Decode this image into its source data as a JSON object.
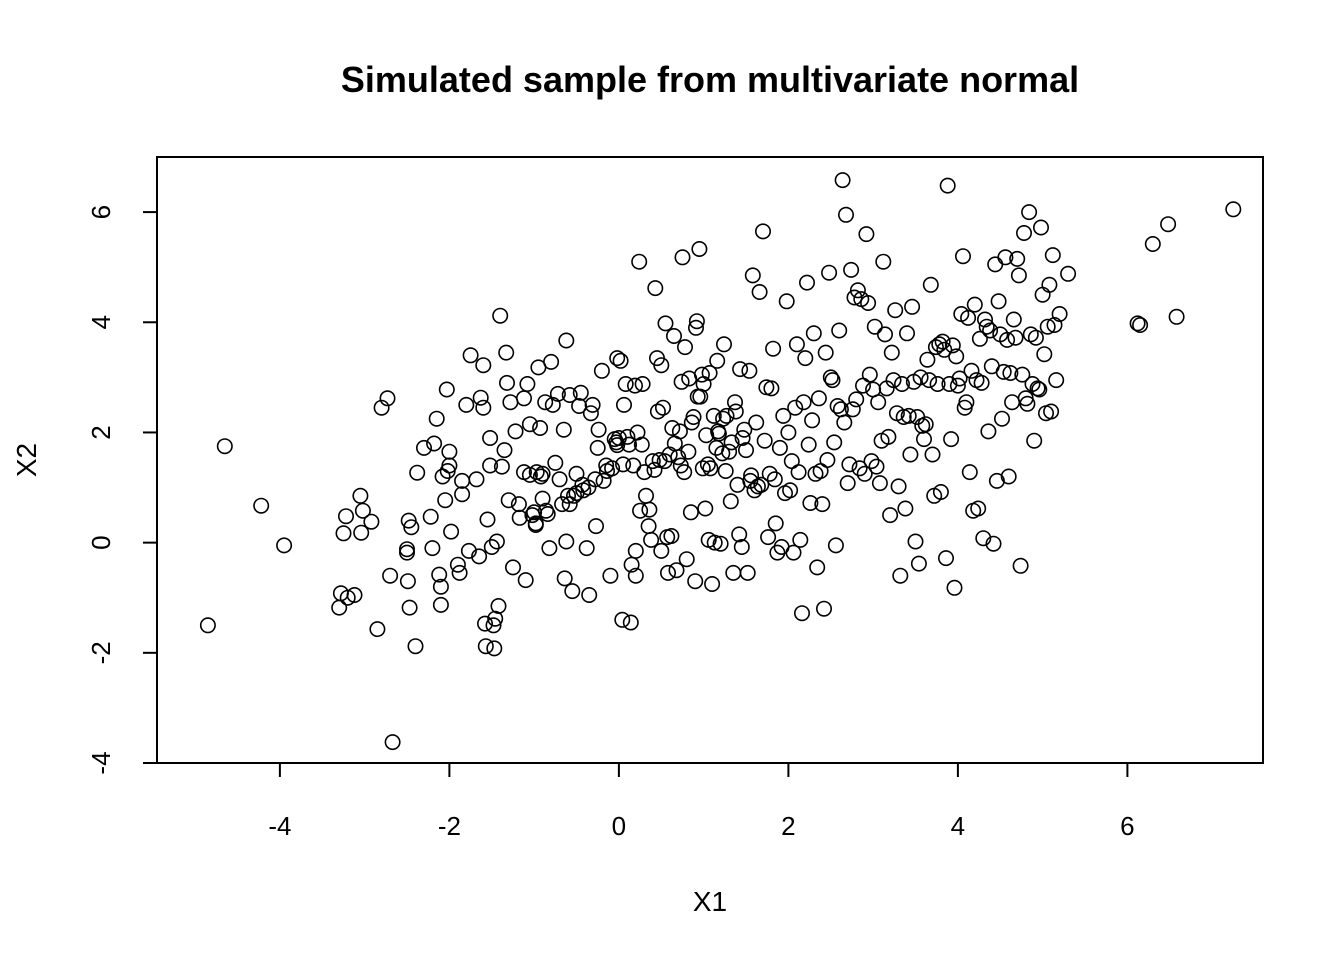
{
  "chart_data": {
    "type": "scatter",
    "title": "Simulated sample from multivariate normal",
    "xlabel": "X1",
    "ylabel": "X2",
    "xlim": [
      -5.45,
      7.6
    ],
    "ylim": [
      -4,
      7
    ],
    "xticks": [
      -4,
      -2,
      0,
      2,
      4,
      6
    ],
    "yticks": [
      -4,
      -2,
      0,
      2,
      4,
      6
    ],
    "xtick_labels": [
      "-4",
      "-2",
      "0",
      "2",
      "4",
      "6"
    ],
    "ytick_labels": [
      "-4",
      "-2",
      "0",
      "2",
      "4",
      "6"
    ],
    "grid": false,
    "legend": "none",
    "marker": "open-circle",
    "color": "#000000",
    "points": [
      [
        -4.85,
        -1.5
      ],
      [
        -4.65,
        1.75
      ],
      [
        -4.22,
        0.67
      ],
      [
        -3.95,
        -0.05
      ],
      [
        -3.3,
        -1.18
      ],
      [
        -3.28,
        -0.92
      ],
      [
        -3.22,
        0.48
      ],
      [
        -3.25,
        0.17
      ],
      [
        -3.2,
        -1.0
      ],
      [
        -3.12,
        -0.95
      ],
      [
        -3.05,
        0.85
      ],
      [
        -3.04,
        0.18
      ],
      [
        -3.02,
        0.58
      ],
      [
        -2.92,
        0.38
      ],
      [
        -2.85,
        -1.57
      ],
      [
        -2.8,
        2.45
      ],
      [
        -2.73,
        2.62
      ],
      [
        -2.7,
        -0.6
      ],
      [
        -2.67,
        -3.62
      ],
      [
        -2.5,
        -0.12
      ],
      [
        -2.5,
        -0.18
      ],
      [
        -2.49,
        -0.7
      ],
      [
        -2.48,
        0.4
      ],
      [
        -2.47,
        -1.18
      ],
      [
        -2.45,
        0.28
      ],
      [
        -2.4,
        -1.88
      ],
      [
        -2.38,
        1.27
      ],
      [
        -2.3,
        1.72
      ],
      [
        -2.22,
        0.47
      ],
      [
        -2.2,
        -0.1
      ],
      [
        -2.18,
        1.8
      ],
      [
        -2.15,
        2.25
      ],
      [
        -2.12,
        -0.58
      ],
      [
        -2.1,
        -0.8
      ],
      [
        -2.1,
        -1.13
      ],
      [
        -2.08,
        1.2
      ],
      [
        -2.05,
        0.77
      ],
      [
        -2.03,
        2.78
      ],
      [
        -2.02,
        1.3
      ],
      [
        -2.0,
        1.4
      ],
      [
        -2.0,
        1.65
      ],
      [
        -1.98,
        0.2
      ],
      [
        -1.9,
        -0.4
      ],
      [
        -1.88,
        -0.55
      ],
      [
        -1.85,
        1.12
      ],
      [
        -1.85,
        0.88
      ],
      [
        -1.8,
        2.5
      ],
      [
        -1.77,
        -0.15
      ],
      [
        -1.75,
        3.4
      ],
      [
        -1.68,
        1.15
      ],
      [
        -1.65,
        -0.25
      ],
      [
        -1.63,
        2.63
      ],
      [
        -1.6,
        2.45
      ],
      [
        -1.6,
        3.22
      ],
      [
        -1.58,
        -1.47
      ],
      [
        -1.57,
        -1.88
      ],
      [
        -1.55,
        0.42
      ],
      [
        -1.52,
        1.9
      ],
      [
        -1.52,
        1.4
      ],
      [
        -1.5,
        -0.08
      ],
      [
        -1.48,
        -1.5
      ],
      [
        -1.47,
        -1.92
      ],
      [
        -1.46,
        -1.38
      ],
      [
        -1.44,
        0.02
      ],
      [
        -1.42,
        -1.15
      ],
      [
        -1.4,
        4.12
      ],
      [
        -1.38,
        1.38
      ],
      [
        -1.35,
        1.68
      ],
      [
        -1.33,
        3.45
      ],
      [
        -1.32,
        2.9
      ],
      [
        -1.3,
        0.77
      ],
      [
        -1.28,
        2.55
      ],
      [
        -1.25,
        -0.45
      ],
      [
        -1.22,
        2.02
      ],
      [
        -1.18,
        0.7
      ],
      [
        -1.17,
        0.45
      ],
      [
        -1.12,
        1.28
      ],
      [
        -1.12,
        2.62
      ],
      [
        -1.1,
        -0.68
      ],
      [
        -1.08,
        2.88
      ],
      [
        -1.05,
        2.15
      ],
      [
        -1.05,
        1.23
      ],
      [
        -1.02,
        0.5
      ],
      [
        -1.0,
        0.55
      ],
      [
        -0.98,
        0.35
      ],
      [
        -0.98,
        0.32
      ],
      [
        -0.97,
        1.28
      ],
      [
        -0.95,
        3.18
      ],
      [
        -0.93,
        2.08
      ],
      [
        -0.92,
        1.2
      ],
      [
        -0.9,
        0.8
      ],
      [
        -0.9,
        1.25
      ],
      [
        -0.87,
        2.55
      ],
      [
        -0.86,
        0.58
      ],
      [
        -0.84,
        0.52
      ],
      [
        -0.82,
        -0.1
      ],
      [
        -0.8,
        3.28
      ],
      [
        -0.78,
        2.5
      ],
      [
        -0.75,
        1.45
      ],
      [
        -0.72,
        2.7
      ],
      [
        -0.7,
        1.15
      ],
      [
        -0.67,
        0.7
      ],
      [
        -0.65,
        2.05
      ],
      [
        -0.64,
        -0.65
      ],
      [
        -0.62,
        0.02
      ],
      [
        -0.62,
        3.67
      ],
      [
        -0.6,
        0.85
      ],
      [
        -0.58,
        2.68
      ],
      [
        -0.58,
        0.7
      ],
      [
        -0.55,
        -0.88
      ],
      [
        -0.53,
        0.85
      ],
      [
        -0.5,
        1.25
      ],
      [
        -0.5,
        0.9
      ],
      [
        -0.47,
        2.48
      ],
      [
        -0.45,
        2.72
      ],
      [
        -0.43,
        1.05
      ],
      [
        -0.42,
        0.95
      ],
      [
        -0.38,
        -0.1
      ],
      [
        -0.36,
        1.0
      ],
      [
        -0.35,
        -0.95
      ],
      [
        -0.33,
        2.35
      ],
      [
        -0.31,
        2.5
      ],
      [
        -0.28,
        1.15
      ],
      [
        -0.27,
        0.3
      ],
      [
        -0.25,
        1.72
      ],
      [
        -0.24,
        2.05
      ],
      [
        -0.2,
        3.12
      ],
      [
        -0.18,
        1.12
      ],
      [
        -0.15,
        1.4
      ],
      [
        -0.14,
        1.3
      ],
      [
        -0.1,
        -0.6
      ],
      [
        -0.08,
        1.35
      ],
      [
        -0.05,
        1.88
      ],
      [
        -0.02,
        1.77
      ],
      [
        0.0,
        1.9
      ],
      [
        0.02,
        3.3
      ],
      [
        0.04,
        -1.4
      ],
      [
        -0.02,
        3.35
      ],
      [
        -0.03,
        1.82
      ],
      [
        0.05,
        1.42
      ],
      [
        0.06,
        2.5
      ],
      [
        0.08,
        2.88
      ],
      [
        0.1,
        1.92
      ],
      [
        0.12,
        1.78
      ],
      [
        0.14,
        -1.45
      ],
      [
        0.15,
        -0.4
      ],
      [
        0.17,
        1.4
      ],
      [
        0.19,
        2.85
      ],
      [
        0.2,
        -0.6
      ],
      [
        0.2,
        -0.15
      ],
      [
        0.22,
        2.0
      ],
      [
        0.24,
        5.1
      ],
      [
        0.25,
        0.58
      ],
      [
        0.27,
        1.78
      ],
      [
        0.28,
        2.88
      ],
      [
        0.3,
        1.28
      ],
      [
        0.32,
        0.85
      ],
      [
        0.35,
        0.3
      ],
      [
        0.36,
        0.6
      ],
      [
        0.38,
        0.05
      ],
      [
        0.4,
        1.48
      ],
      [
        0.42,
        1.32
      ],
      [
        0.43,
        4.62
      ],
      [
        0.45,
        3.35
      ],
      [
        0.46,
        2.38
      ],
      [
        0.48,
        1.5
      ],
      [
        0.5,
        3.22
      ],
      [
        0.5,
        -0.15
      ],
      [
        0.52,
        2.45
      ],
      [
        0.54,
        1.48
      ],
      [
        0.55,
        3.98
      ],
      [
        0.57,
        0.1
      ],
      [
        0.58,
        -0.55
      ],
      [
        0.6,
        1.6
      ],
      [
        0.62,
        0.12
      ],
      [
        0.63,
        2.08
      ],
      [
        0.65,
        3.75
      ],
      [
        0.66,
        1.8
      ],
      [
        0.68,
        -0.5
      ],
      [
        0.7,
        1.55
      ],
      [
        0.72,
        2.02
      ],
      [
        0.73,
        1.4
      ],
      [
        0.74,
        2.92
      ],
      [
        0.75,
        5.18
      ],
      [
        0.77,
        1.28
      ],
      [
        0.78,
        3.55
      ],
      [
        0.8,
        -0.3
      ],
      [
        0.82,
        1.65
      ],
      [
        0.83,
        2.98
      ],
      [
        0.85,
        0.55
      ],
      [
        0.86,
        2.18
      ],
      [
        0.88,
        2.28
      ],
      [
        0.9,
        -0.7
      ],
      [
        0.91,
        3.9
      ],
      [
        0.92,
        4.02
      ],
      [
        0.93,
        2.65
      ],
      [
        0.95,
        5.33
      ],
      [
        0.96,
        2.65
      ],
      [
        0.98,
        3.05
      ],
      [
        0.99,
        1.35
      ],
      [
        1.0,
        2.88
      ],
      [
        1.02,
        0.62
      ],
      [
        1.03,
        1.95
      ],
      [
        1.05,
        1.42
      ],
      [
        1.06,
        0.05
      ],
      [
        1.07,
        3.08
      ],
      [
        1.08,
        1.35
      ],
      [
        1.1,
        -0.75
      ],
      [
        1.12,
        2.3
      ],
      [
        1.13,
        0.0
      ],
      [
        1.15,
        1.72
      ],
      [
        1.16,
        3.3
      ],
      [
        1.17,
        2.02
      ],
      [
        1.18,
        1.98
      ],
      [
        1.2,
        -0.02
      ],
      [
        1.22,
        1.62
      ],
      [
        1.23,
        2.25
      ],
      [
        1.24,
        3.6
      ],
      [
        1.26,
        1.3
      ],
      [
        1.27,
        2.3
      ],
      [
        1.3,
        1.65
      ],
      [
        1.32,
        0.75
      ],
      [
        1.33,
        1.82
      ],
      [
        1.35,
        -0.55
      ],
      [
        1.37,
        2.55
      ],
      [
        1.38,
        2.38
      ],
      [
        1.4,
        1.05
      ],
      [
        1.42,
        0.15
      ],
      [
        1.43,
        3.15
      ],
      [
        1.45,
        -0.08
      ],
      [
        1.46,
        1.9
      ],
      [
        1.48,
        2.05
      ],
      [
        1.5,
        1.68
      ],
      [
        1.52,
        -0.55
      ],
      [
        1.54,
        3.12
      ],
      [
        1.55,
        1.12
      ],
      [
        1.56,
        1.22
      ],
      [
        1.58,
        4.85
      ],
      [
        1.6,
        0.95
      ],
      [
        1.62,
        2.18
      ],
      [
        1.64,
        1.02
      ],
      [
        1.66,
        4.55
      ],
      [
        1.68,
        1.05
      ],
      [
        1.7,
        5.65
      ],
      [
        1.72,
        1.85
      ],
      [
        1.74,
        2.82
      ],
      [
        1.76,
        0.1
      ],
      [
        1.78,
        1.25
      ],
      [
        1.8,
        2.8
      ],
      [
        1.82,
        3.52
      ],
      [
        1.84,
        1.15
      ],
      [
        1.85,
        0.35
      ],
      [
        1.87,
        -0.18
      ],
      [
        1.9,
        1.72
      ],
      [
        1.92,
        -0.08
      ],
      [
        1.94,
        2.3
      ],
      [
        1.96,
        0.9
      ],
      [
        1.98,
        4.38
      ],
      [
        2.0,
        2.0
      ],
      [
        2.02,
        0.95
      ],
      [
        2.04,
        1.48
      ],
      [
        2.06,
        -0.18
      ],
      [
        2.08,
        2.45
      ],
      [
        2.1,
        3.6
      ],
      [
        2.12,
        1.28
      ],
      [
        2.14,
        0.05
      ],
      [
        2.16,
        -1.28
      ],
      [
        2.18,
        2.55
      ],
      [
        2.2,
        3.35
      ],
      [
        2.22,
        4.72
      ],
      [
        2.24,
        1.78
      ],
      [
        2.26,
        0.72
      ],
      [
        2.28,
        2.22
      ],
      [
        2.3,
        3.8
      ],
      [
        2.32,
        1.25
      ],
      [
        2.34,
        -0.45
      ],
      [
        2.36,
        2.62
      ],
      [
        2.38,
        1.3
      ],
      [
        2.4,
        0.7
      ],
      [
        2.42,
        -1.2
      ],
      [
        2.44,
        3.45
      ],
      [
        2.46,
        1.5
      ],
      [
        2.48,
        4.9
      ],
      [
        2.5,
        3.0
      ],
      [
        2.52,
        2.95
      ],
      [
        2.54,
        1.82
      ],
      [
        2.56,
        -0.05
      ],
      [
        2.58,
        2.48
      ],
      [
        2.6,
        3.85
      ],
      [
        2.62,
        2.42
      ],
      [
        2.64,
        6.58
      ],
      [
        2.66,
        2.18
      ],
      [
        2.68,
        5.95
      ],
      [
        2.7,
        1.08
      ],
      [
        2.72,
        1.42
      ],
      [
        2.74,
        4.95
      ],
      [
        2.76,
        2.42
      ],
      [
        2.78,
        4.45
      ],
      [
        2.8,
        2.6
      ],
      [
        2.82,
        4.58
      ],
      [
        2.84,
        1.35
      ],
      [
        2.86,
        4.42
      ],
      [
        2.88,
        2.85
      ],
      [
        2.9,
        1.25
      ],
      [
        2.92,
        5.6
      ],
      [
        2.94,
        4.35
      ],
      [
        2.96,
        3.05
      ],
      [
        2.98,
        1.48
      ],
      [
        3.0,
        2.78
      ],
      [
        3.02,
        3.92
      ],
      [
        3.04,
        1.38
      ],
      [
        3.06,
        2.55
      ],
      [
        3.08,
        1.08
      ],
      [
        3.1,
        1.85
      ],
      [
        3.12,
        5.1
      ],
      [
        3.14,
        3.78
      ],
      [
        3.16,
        2.8
      ],
      [
        3.18,
        1.92
      ],
      [
        3.2,
        0.5
      ],
      [
        3.22,
        3.45
      ],
      [
        3.24,
        2.95
      ],
      [
        3.26,
        4.22
      ],
      [
        3.28,
        2.35
      ],
      [
        3.3,
        1.02
      ],
      [
        3.32,
        -0.6
      ],
      [
        3.34,
        2.88
      ],
      [
        3.36,
        2.28
      ],
      [
        3.38,
        0.62
      ],
      [
        3.4,
        3.8
      ],
      [
        3.42,
        2.3
      ],
      [
        3.44,
        1.6
      ],
      [
        3.46,
        4.28
      ],
      [
        3.48,
        2.92
      ],
      [
        3.5,
        0.02
      ],
      [
        3.52,
        2.28
      ],
      [
        3.54,
        -0.38
      ],
      [
        3.56,
        3.0
      ],
      [
        3.58,
        2.12
      ],
      [
        3.6,
        1.88
      ],
      [
        3.62,
        2.15
      ],
      [
        3.64,
        3.32
      ],
      [
        3.66,
        2.95
      ],
      [
        3.68,
        4.68
      ],
      [
        3.7,
        1.6
      ],
      [
        3.72,
        0.85
      ],
      [
        3.74,
        3.55
      ],
      [
        3.76,
        2.88
      ],
      [
        3.78,
        3.6
      ],
      [
        3.8,
        0.92
      ],
      [
        3.82,
        3.65
      ],
      [
        3.84,
        3.5
      ],
      [
        3.86,
        -0.28
      ],
      [
        3.88,
        6.48
      ],
      [
        3.9,
        2.88
      ],
      [
        3.92,
        1.88
      ],
      [
        3.94,
        3.58
      ],
      [
        3.96,
        -0.82
      ],
      [
        3.98,
        3.38
      ],
      [
        4.0,
        2.85
      ],
      [
        4.02,
        2.98
      ],
      [
        4.04,
        4.15
      ],
      [
        4.06,
        5.2
      ],
      [
        4.08,
        2.45
      ],
      [
        4.1,
        2.55
      ],
      [
        4.12,
        4.08
      ],
      [
        4.14,
        1.28
      ],
      [
        4.16,
        3.12
      ],
      [
        4.18,
        0.58
      ],
      [
        4.2,
        4.32
      ],
      [
        4.22,
        2.95
      ],
      [
        4.24,
        0.62
      ],
      [
        4.26,
        3.7
      ],
      [
        4.28,
        2.9
      ],
      [
        4.3,
        0.08
      ],
      [
        4.32,
        4.05
      ],
      [
        4.34,
        3.92
      ],
      [
        4.36,
        2.02
      ],
      [
        4.38,
        3.85
      ],
      [
        4.4,
        3.2
      ],
      [
        4.42,
        -0.02
      ],
      [
        4.44,
        5.05
      ],
      [
        4.46,
        1.12
      ],
      [
        4.48,
        4.38
      ],
      [
        4.5,
        3.78
      ],
      [
        4.52,
        2.25
      ],
      [
        4.54,
        3.1
      ],
      [
        4.56,
        5.18
      ],
      [
        4.58,
        3.68
      ],
      [
        4.6,
        1.2
      ],
      [
        4.62,
        3.08
      ],
      [
        4.64,
        2.55
      ],
      [
        4.66,
        4.05
      ],
      [
        4.68,
        3.72
      ],
      [
        4.7,
        5.15
      ],
      [
        4.72,
        4.85
      ],
      [
        4.74,
        -0.42
      ],
      [
        4.76,
        3.05
      ],
      [
        4.78,
        5.62
      ],
      [
        4.8,
        2.62
      ],
      [
        4.82,
        2.52
      ],
      [
        4.84,
        6.0
      ],
      [
        4.86,
        3.78
      ],
      [
        4.88,
        2.88
      ],
      [
        4.9,
        1.85
      ],
      [
        4.92,
        3.72
      ],
      [
        4.94,
        2.8
      ],
      [
        4.96,
        2.78
      ],
      [
        4.98,
        5.72
      ],
      [
        5.0,
        4.5
      ],
      [
        5.02,
        3.42
      ],
      [
        5.04,
        2.35
      ],
      [
        5.06,
        3.92
      ],
      [
        5.08,
        4.68
      ],
      [
        5.1,
        2.38
      ],
      [
        5.12,
        5.22
      ],
      [
        5.14,
        3.95
      ],
      [
        5.16,
        2.95
      ],
      [
        5.2,
        4.15
      ],
      [
        5.3,
        4.88
      ],
      [
        6.12,
        3.98
      ],
      [
        6.15,
        3.95
      ],
      [
        6.3,
        5.42
      ],
      [
        6.48,
        5.78
      ],
      [
        6.58,
        4.1
      ],
      [
        7.25,
        6.05
      ]
    ]
  }
}
